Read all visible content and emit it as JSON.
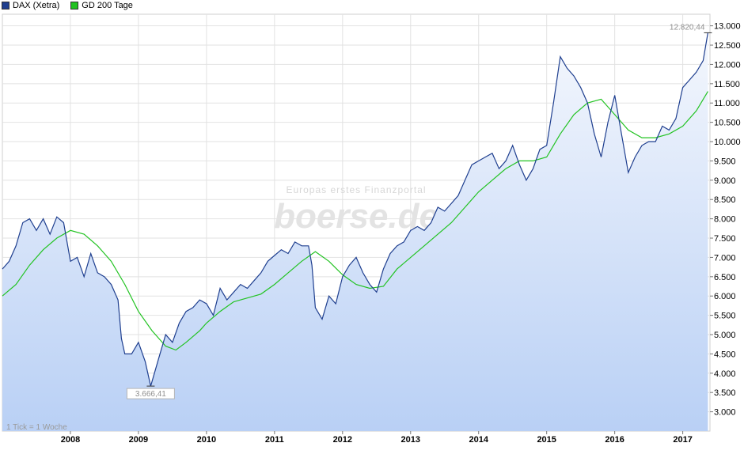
{
  "legend": {
    "series1_label": "DAX (Xetra)",
    "series2_label": "GD 200 Tage",
    "series1_color": "#1f3f8f",
    "series2_color": "#22c322"
  },
  "watermark": {
    "tagline": "Europas erstes Finanzportal",
    "brand": "boerse.de"
  },
  "footer_note": "1 Tick = 1 Woche",
  "annotations": {
    "max_label": "12.820,44",
    "min_label": "3.666,41"
  },
  "chart_data": {
    "type": "line",
    "title": "",
    "xlabel": "",
    "ylabel": "",
    "x_ticks": [
      "2008",
      "2009",
      "2010",
      "2011",
      "2012",
      "2013",
      "2014",
      "2015",
      "2016",
      "2017"
    ],
    "y_ticks": [
      "3.000",
      "3.500",
      "4.000",
      "4.500",
      "5.000",
      "5.500",
      "6.000",
      "6.500",
      "7.000",
      "7.500",
      "8.000",
      "8.500",
      "9.000",
      "9.500",
      "10.000",
      "10.500",
      "11.000",
      "11.500",
      "12.000",
      "12.500",
      "13.000"
    ],
    "xlim": [
      2007.0,
      2017.4
    ],
    "ylim": [
      2500,
      13300
    ],
    "grid": true,
    "legend_position": "top-left",
    "series": [
      {
        "name": "DAX (Xetra)",
        "x": [
          2007.0,
          2007.1,
          2007.2,
          2007.3,
          2007.4,
          2007.5,
          2007.6,
          2007.7,
          2007.8,
          2007.9,
          2008.0,
          2008.1,
          2008.2,
          2008.3,
          2008.4,
          2008.5,
          2008.6,
          2008.7,
          2008.75,
          2008.8,
          2008.9,
          2009.0,
          2009.1,
          2009.18,
          2009.3,
          2009.4,
          2009.5,
          2009.6,
          2009.7,
          2009.8,
          2009.9,
          2010.0,
          2010.1,
          2010.2,
          2010.3,
          2010.4,
          2010.5,
          2010.6,
          2010.7,
          2010.8,
          2010.9,
          2011.0,
          2011.1,
          2011.2,
          2011.3,
          2011.4,
          2011.5,
          2011.55,
          2011.6,
          2011.7,
          2011.8,
          2011.9,
          2012.0,
          2012.1,
          2012.2,
          2012.3,
          2012.4,
          2012.5,
          2012.6,
          2012.7,
          2012.8,
          2012.9,
          2013.0,
          2013.1,
          2013.2,
          2013.3,
          2013.4,
          2013.5,
          2013.6,
          2013.7,
          2013.8,
          2013.9,
          2014.0,
          2014.1,
          2014.2,
          2014.3,
          2014.4,
          2014.5,
          2014.6,
          2014.7,
          2014.8,
          2014.9,
          2015.0,
          2015.1,
          2015.2,
          2015.3,
          2015.4,
          2015.5,
          2015.6,
          2015.7,
          2015.8,
          2015.9,
          2016.0,
          2016.1,
          2016.2,
          2016.3,
          2016.4,
          2016.5,
          2016.6,
          2016.7,
          2016.8,
          2016.9,
          2017.0,
          2017.1,
          2017.2,
          2017.3,
          2017.37
        ],
        "y": [
          6700,
          6900,
          7300,
          7900,
          8000,
          7700,
          8000,
          7600,
          8050,
          7900,
          6900,
          7000,
          6500,
          7100,
          6600,
          6500,
          6300,
          5900,
          4900,
          4500,
          4500,
          4800,
          4300,
          3666,
          4400,
          5000,
          4800,
          5300,
          5600,
          5700,
          5900,
          5800,
          5500,
          6200,
          5900,
          6100,
          6300,
          6200,
          6400,
          6600,
          6900,
          7050,
          7200,
          7100,
          7400,
          7300,
          7300,
          6800,
          5700,
          5400,
          6000,
          5800,
          6500,
          6800,
          7000,
          6600,
          6300,
          6100,
          6700,
          7100,
          7300,
          7400,
          7700,
          7800,
          7700,
          7900,
          8300,
          8200,
          8400,
          8600,
          9000,
          9400,
          9500,
          9600,
          9700,
          9300,
          9500,
          9900,
          9400,
          9000,
          9300,
          9800,
          9900,
          11000,
          12200,
          11900,
          11700,
          11400,
          11000,
          10200,
          9600,
          10500,
          11200,
          10200,
          9200,
          9600,
          9900,
          10000,
          10000,
          10400,
          10300,
          10600,
          11400,
          11600,
          11800,
          12100,
          12820
        ]
      },
      {
        "name": "GD 200 Tage",
        "x": [
          2007.0,
          2007.2,
          2007.4,
          2007.6,
          2007.8,
          2008.0,
          2008.2,
          2008.4,
          2008.6,
          2008.8,
          2009.0,
          2009.2,
          2009.4,
          2009.55,
          2009.7,
          2009.9,
          2010.0,
          2010.2,
          2010.4,
          2010.6,
          2010.8,
          2011.0,
          2011.2,
          2011.4,
          2011.6,
          2011.8,
          2012.0,
          2012.2,
          2012.4,
          2012.6,
          2012.8,
          2013.0,
          2013.2,
          2013.4,
          2013.6,
          2013.8,
          2014.0,
          2014.2,
          2014.4,
          2014.6,
          2014.8,
          2015.0,
          2015.2,
          2015.4,
          2015.6,
          2015.8,
          2016.0,
          2016.2,
          2016.4,
          2016.6,
          2016.8,
          2017.0,
          2017.2,
          2017.37
        ],
        "y": [
          6000,
          6300,
          6800,
          7200,
          7500,
          7700,
          7600,
          7300,
          6900,
          6300,
          5600,
          5100,
          4700,
          4600,
          4800,
          5100,
          5300,
          5600,
          5850,
          5950,
          6050,
          6300,
          6600,
          6900,
          7150,
          6900,
          6550,
          6300,
          6200,
          6250,
          6700,
          7000,
          7300,
          7600,
          7900,
          8300,
          8700,
          9000,
          9300,
          9500,
          9500,
          9600,
          10200,
          10700,
          11000,
          11100,
          10700,
          10300,
          10100,
          10100,
          10200,
          10400,
          10800,
          11300
        ]
      }
    ]
  }
}
